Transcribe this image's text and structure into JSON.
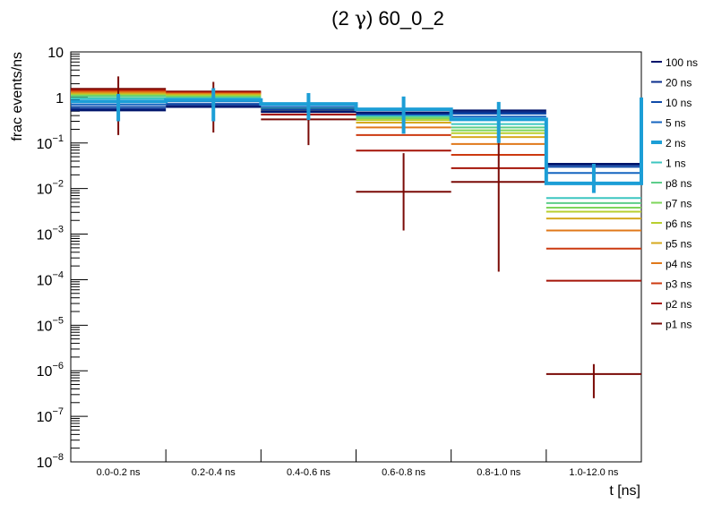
{
  "chart_data": {
    "type": "line",
    "title_prefix": "(2 ",
    "title_symbol": "γ",
    "title_suffix": ") 60_0_2",
    "xlabel": "t [ns]",
    "ylabel": "frac events/ns",
    "yscale": "log",
    "ylim": [
      1e-08,
      10
    ],
    "ytick_base": "10",
    "yticks": [
      {
        "value": 1e-08,
        "label": "10",
        "exp": "−8"
      },
      {
        "value": 1e-07,
        "label": "10",
        "exp": "−7"
      },
      {
        "value": 1e-06,
        "label": "10",
        "exp": "−6"
      },
      {
        "value": 1e-05,
        "label": "10",
        "exp": "−5"
      },
      {
        "value": 0.0001,
        "label": "10",
        "exp": "−4"
      },
      {
        "value": 0.001,
        "label": "10",
        "exp": "−3"
      },
      {
        "value": 0.01,
        "label": "10",
        "exp": "−2"
      },
      {
        "value": 0.1,
        "label": "10",
        "exp": "−1"
      },
      {
        "value": 1,
        "label": "1",
        "exp": ""
      },
      {
        "value": 10,
        "label": "10",
        "exp": ""
      }
    ],
    "categories": [
      "0.0-0.2 ns",
      "0.2-0.4 ns",
      "0.4-0.6 ns",
      "0.6-0.8 ns",
      "0.8-1.0 ns",
      "1.0-12.0 ns"
    ],
    "highlight_series": "2 ns",
    "series": [
      {
        "name": "100 ns",
        "color": "#00156b",
        "values": [
          0.52,
          0.62,
          0.48,
          0.47,
          0.52,
          0.035
        ]
      },
      {
        "name": "20 ns",
        "color": "#0a2d8c",
        "values": [
          0.56,
          0.66,
          0.5,
          0.45,
          0.48,
          0.033
        ]
      },
      {
        "name": "10 ns",
        "color": "#0f4aa8",
        "values": [
          0.62,
          0.72,
          0.55,
          0.44,
          0.44,
          0.03
        ]
      },
      {
        "name": "5 ns",
        "color": "#1565c0",
        "values": [
          0.7,
          0.82,
          0.62,
          0.42,
          0.38,
          0.022
        ]
      },
      {
        "name": "2 ns",
        "color": "#1c9ed6",
        "values": [
          0.82,
          0.88,
          0.72,
          0.55,
          0.33,
          0.013
        ],
        "errors": [
          [
            0.3,
            1.2
          ],
          [
            0.3,
            1.6
          ],
          [
            0.32,
            1.25
          ],
          [
            0.16,
            1.05
          ],
          [
            0.1,
            0.8
          ],
          [
            0.008,
            0.035
          ]
        ],
        "overflow_top": 1.0
      },
      {
        "name": "1 ns",
        "color": "#3cc6c0",
        "values": [
          0.95,
          0.95,
          0.62,
          0.4,
          0.26,
          0.0062
        ]
      },
      {
        "name": "p8 ns",
        "color": "#5ccd8a",
        "values": [
          1.05,
          1.0,
          0.6,
          0.38,
          0.22,
          0.0048
        ]
      },
      {
        "name": "p7 ns",
        "color": "#7dd55a",
        "values": [
          1.1,
          1.05,
          0.58,
          0.35,
          0.19,
          0.0038
        ]
      },
      {
        "name": "p6 ns",
        "color": "#b8cf2e",
        "values": [
          1.15,
          1.1,
          0.56,
          0.32,
          0.165,
          0.0031
        ]
      },
      {
        "name": "p5 ns",
        "color": "#d6a91e",
        "values": [
          1.22,
          1.15,
          0.54,
          0.28,
          0.135,
          0.0022
        ]
      },
      {
        "name": "p4 ns",
        "color": "#e0781a",
        "values": [
          1.3,
          1.2,
          0.52,
          0.22,
          0.095,
          0.0012
        ]
      },
      {
        "name": "p3 ns",
        "color": "#cc3a10",
        "values": [
          1.38,
          1.25,
          0.48,
          0.15,
          0.055,
          0.00048
        ]
      },
      {
        "name": "p2 ns",
        "color": "#a51408",
        "values": [
          1.45,
          1.3,
          0.42,
          0.068,
          0.028,
          9.5e-05
        ]
      },
      {
        "name": "p1 ns",
        "color": "#7a0a06",
        "values": [
          1.55,
          1.35,
          0.33,
          0.0085,
          0.014,
          8.5e-07
        ],
        "errors": [
          [
            0.15,
            2.9
          ],
          [
            0.17,
            2.2
          ],
          [
            0.09,
            0.6
          ],
          [
            0.0012,
            0.06
          ],
          [
            0.00015,
            0.1
          ],
          [
            2.5e-07,
            1.4e-06
          ]
        ]
      }
    ],
    "grid": false,
    "legend_position": "right"
  }
}
